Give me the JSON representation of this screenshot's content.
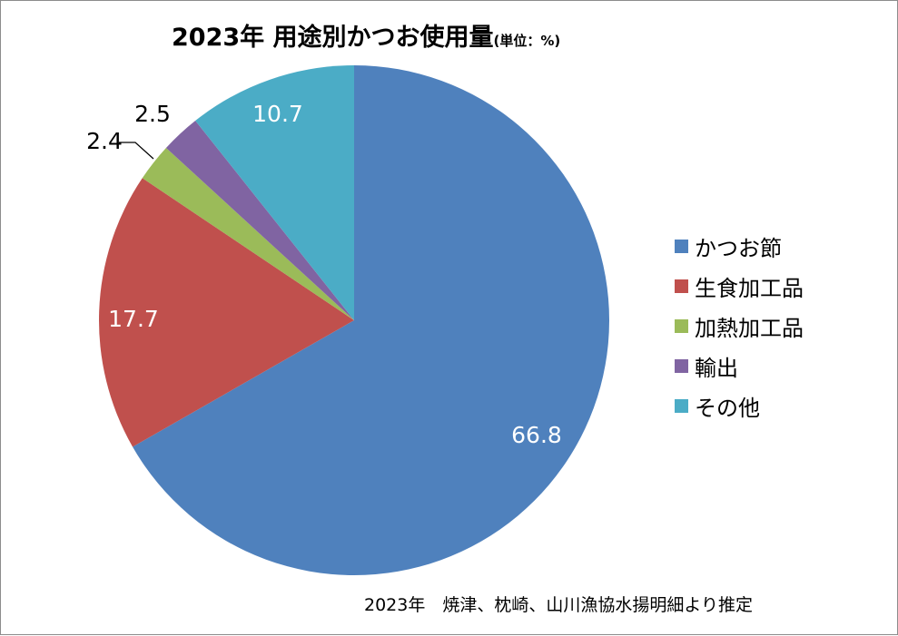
{
  "chart_data": {
    "type": "pie",
    "title": "2023年 用途別かつお使用量",
    "title_unit": "(単位：%)",
    "categories": [
      "かつお節",
      "生食加工品",
      "加熱加工品",
      "輸出",
      "その他"
    ],
    "values": [
      66.8,
      17.7,
      2.4,
      2.5,
      10.7
    ],
    "value_labels": [
      "66.8",
      "17.7",
      "2.4",
      "2.5",
      "10.7"
    ],
    "colors": [
      "#4F81BD",
      "#C0504D",
      "#9BBB59",
      "#8064A2",
      "#4BACC6"
    ],
    "value_label_colors": [
      "#ffffff",
      "#ffffff",
      "#000000",
      "#000000",
      "#ffffff"
    ],
    "start_angle_deg": 0,
    "direction": "clockwise",
    "legend_position": "right",
    "source_note": "2023年　焼津、枕崎、山川漁協水揚明細より推定"
  }
}
